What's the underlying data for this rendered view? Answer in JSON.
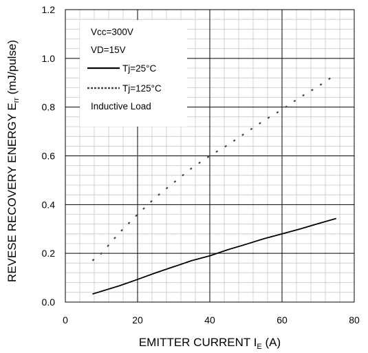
{
  "chart_data": {
    "type": "line",
    "xlabel": {
      "main": "EMITTER CURRENT I",
      "sub": "E",
      "tail": " (A)"
    },
    "ylabel": {
      "main": "REVESE RECOVERY ENERGY E",
      "sub": "rr",
      "tail": " (mJ/pulse)"
    },
    "xlim": [
      0,
      80
    ],
    "ylim": [
      0,
      1.2
    ],
    "x_ticks": [
      "0",
      "20",
      "40",
      "60",
      "80"
    ],
    "y_ticks": [
      "0.0",
      "0.2",
      "0.4",
      "0.6",
      "0.8",
      "1.0",
      "1.2"
    ],
    "grid": true,
    "legend_position": "top-left",
    "annotations": [
      "Vcc=300V",
      "VD=15V",
      "Inductive Load"
    ],
    "series": [
      {
        "name": "Tj=25°C",
        "style": "solid",
        "color": "#000000",
        "points": [
          [
            7.5,
            0.033
          ],
          [
            15,
            0.067
          ],
          [
            20,
            0.093
          ],
          [
            25,
            0.12
          ],
          [
            30,
            0.145
          ],
          [
            35,
            0.17
          ],
          [
            40,
            0.19
          ],
          [
            45,
            0.215
          ],
          [
            50,
            0.237
          ],
          [
            55,
            0.26
          ],
          [
            60,
            0.28
          ],
          [
            65,
            0.3
          ],
          [
            70,
            0.322
          ],
          [
            75,
            0.343
          ]
        ]
      },
      {
        "name": "Tj=125°C",
        "style": "dotted",
        "color": "#444444",
        "points": [
          [
            7.5,
            0.17
          ],
          [
            10,
            0.2
          ],
          [
            15,
            0.285
          ],
          [
            20,
            0.36
          ],
          [
            25,
            0.43
          ],
          [
            30,
            0.49
          ],
          [
            35,
            0.55
          ],
          [
            40,
            0.6
          ],
          [
            45,
            0.645
          ],
          [
            50,
            0.695
          ],
          [
            55,
            0.745
          ],
          [
            60,
            0.79
          ],
          [
            65,
            0.84
          ],
          [
            70,
            0.885
          ],
          [
            75,
            0.935
          ]
        ]
      }
    ]
  }
}
